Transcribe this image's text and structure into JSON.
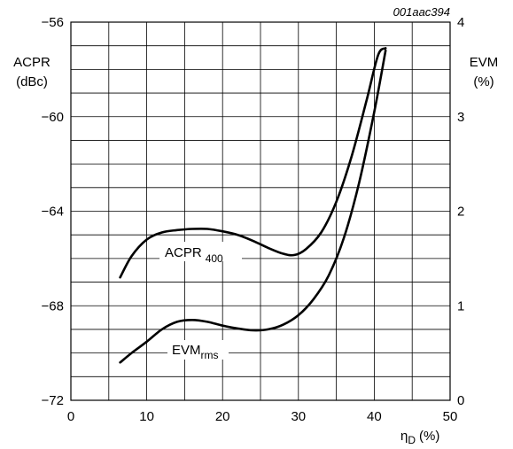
{
  "chart_data": {
    "type": "line",
    "figure_code": "001aac394",
    "xlabel": "η",
    "xlabel_sub": "D",
    "xlabel_unit": "(%)",
    "x_ticks": [
      "0",
      "10",
      "20",
      "30",
      "40",
      "50"
    ],
    "xlim": [
      0,
      50
    ],
    "y_left": {
      "label_line1": "ACPR",
      "label_line2": "(dBc)",
      "ticks": [
        "−56",
        "−60",
        "−64",
        "−68",
        "−72"
      ],
      "ylim": [
        -72,
        -56
      ]
    },
    "y_right": {
      "label_line1": "EVM",
      "label_line2": "(%)",
      "ticks": [
        "4",
        "3",
        "2",
        "1",
        "0"
      ],
      "ylim": [
        0,
        4
      ]
    },
    "grid": true,
    "series": [
      {
        "name": "ACPR",
        "name_sub": "400",
        "axis": "left",
        "x": [
          6.5,
          8,
          10,
          12,
          14,
          16,
          18,
          20,
          22,
          24,
          26,
          28,
          29.5,
          31,
          33,
          35,
          37,
          39,
          40.5,
          41.5
        ],
        "y": [
          -66.8,
          -65.9,
          -65.2,
          -64.9,
          -64.8,
          -64.75,
          -64.75,
          -64.85,
          -65.0,
          -65.25,
          -65.55,
          -65.8,
          -65.85,
          -65.6,
          -64.9,
          -63.6,
          -61.7,
          -59.3,
          -57.4,
          -57.1
        ]
      },
      {
        "name": "EVM",
        "name_sub": "rms",
        "axis": "right",
        "x": [
          6.5,
          8,
          10,
          12,
          14,
          16,
          18,
          20,
          22,
          24,
          26,
          28,
          30,
          32,
          34,
          36,
          38,
          40,
          41.5
        ],
        "y": [
          0.4,
          0.5,
          0.62,
          0.75,
          0.83,
          0.85,
          0.83,
          0.79,
          0.76,
          0.74,
          0.75,
          0.8,
          0.9,
          1.07,
          1.32,
          1.72,
          2.3,
          3.05,
          3.7
        ]
      }
    ]
  }
}
